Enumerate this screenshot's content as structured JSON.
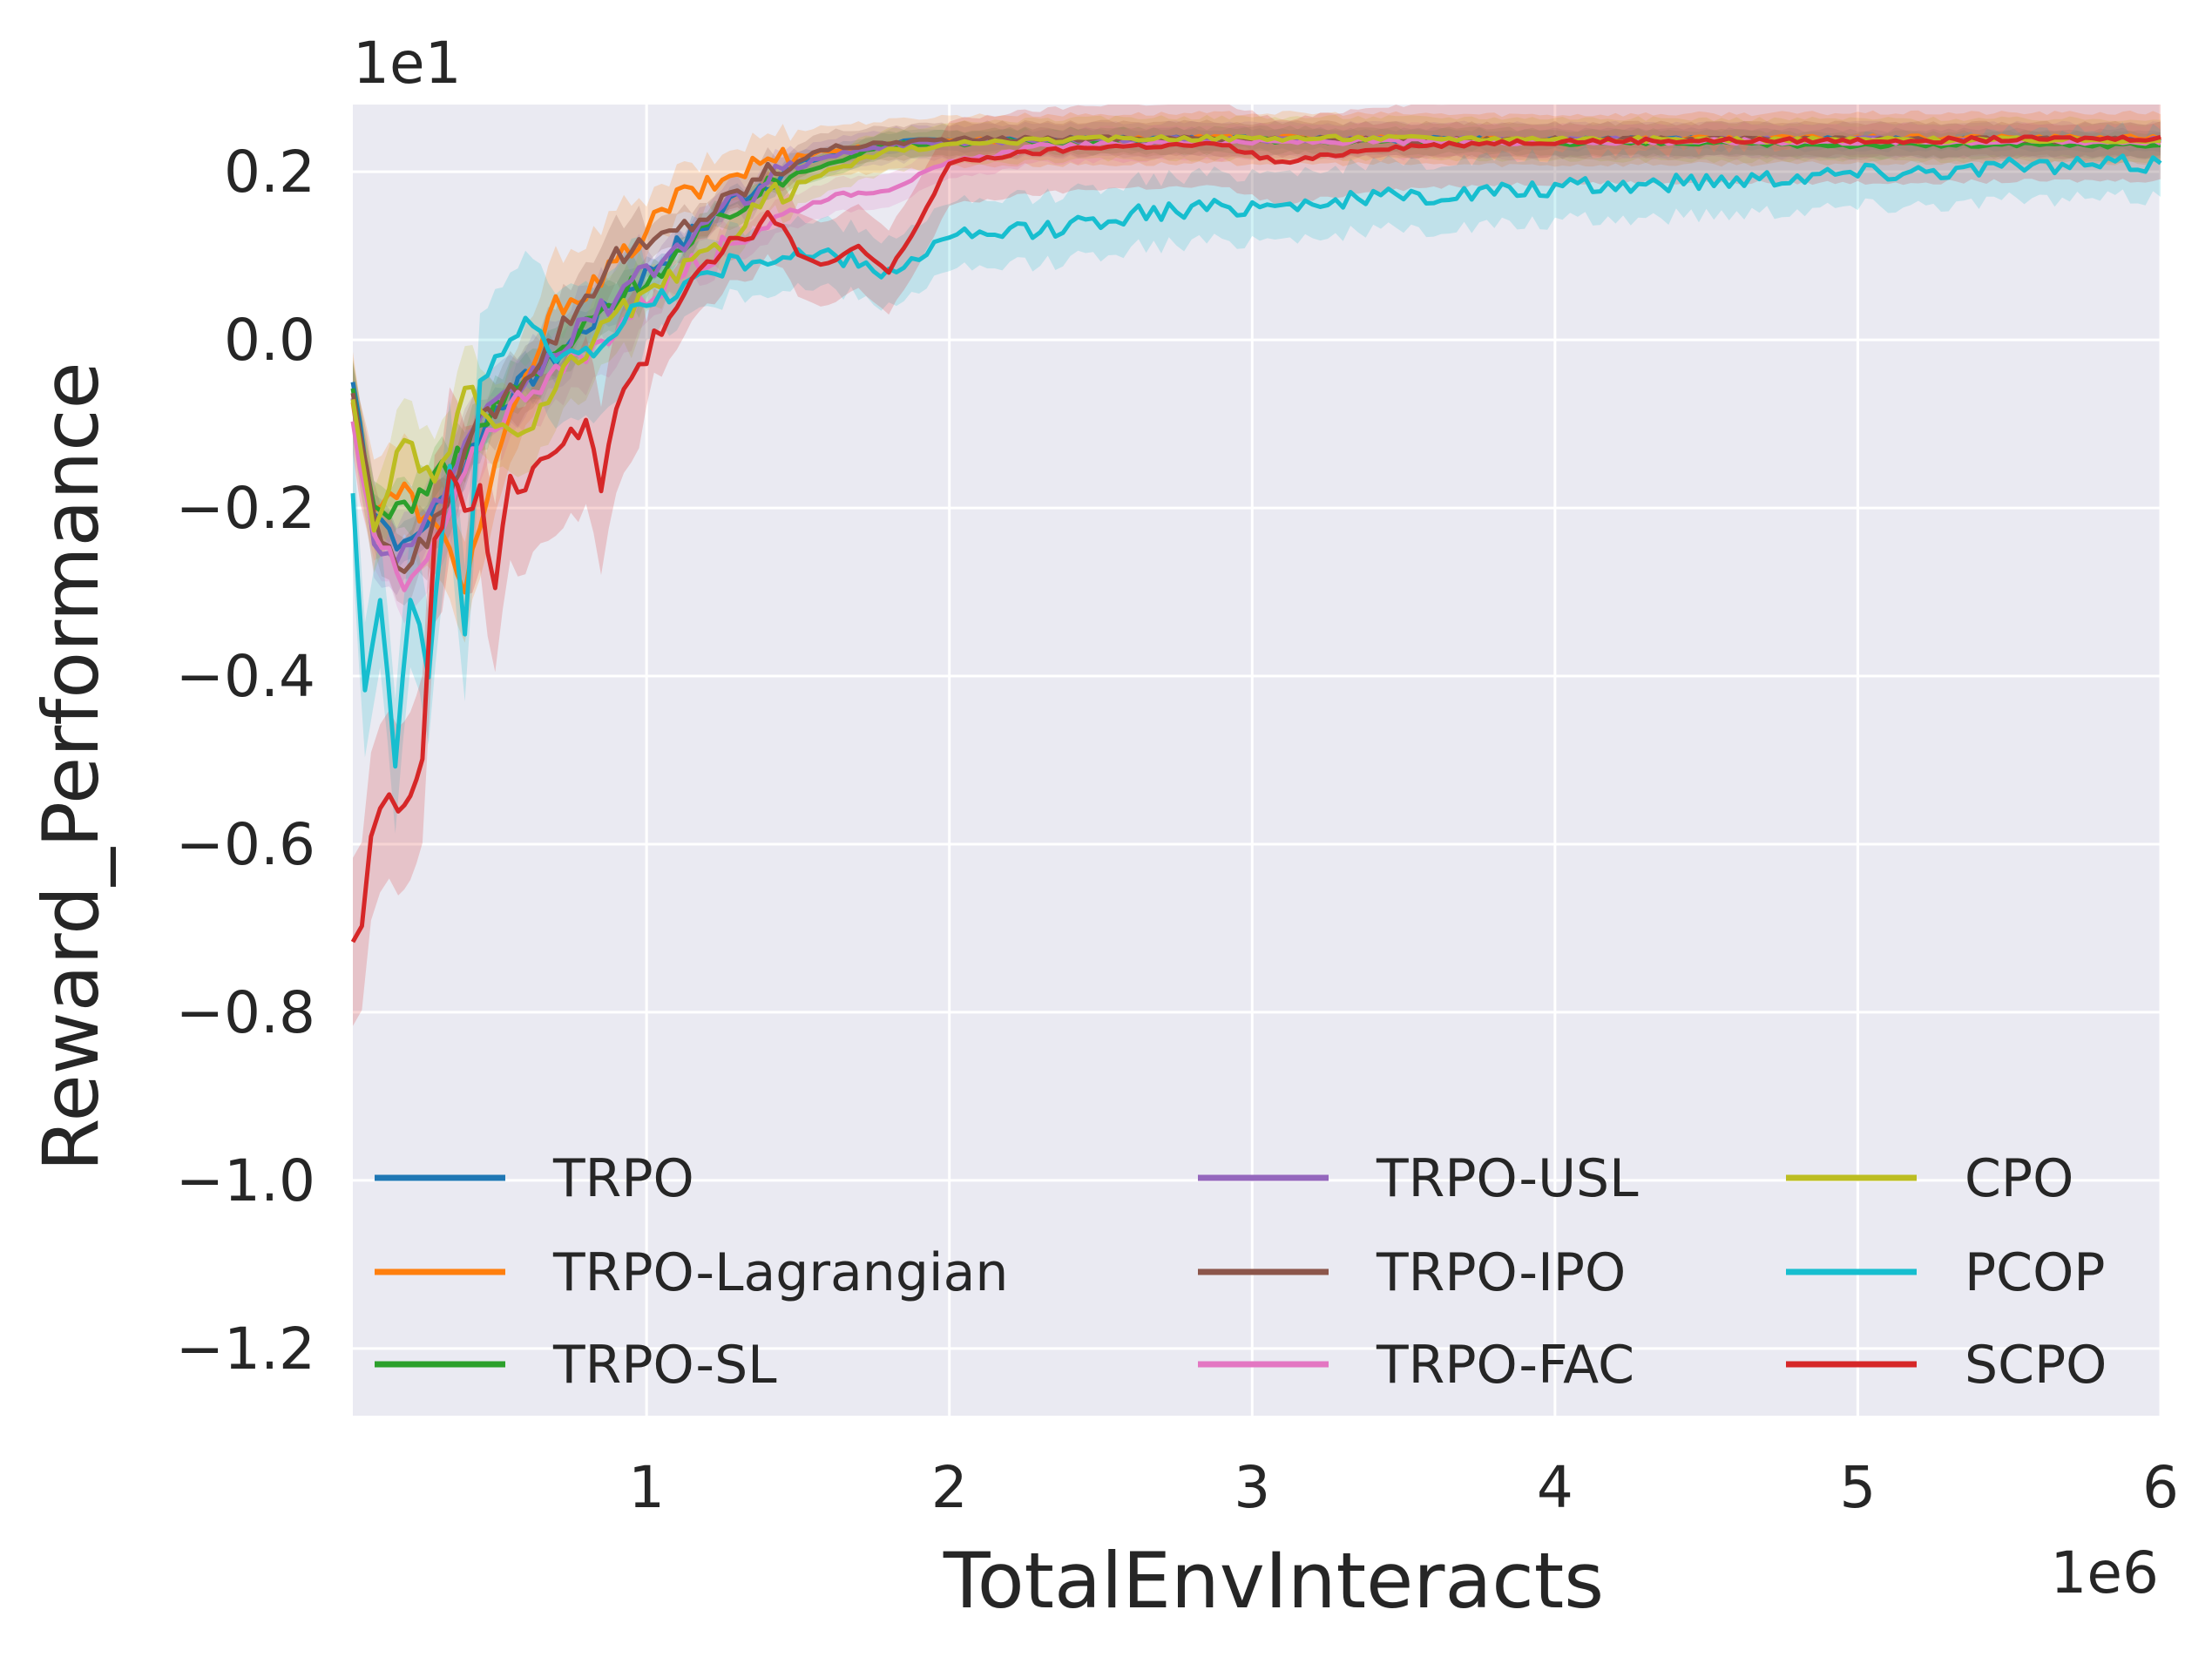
{
  "chart_data": {
    "type": "line",
    "title": "",
    "xlabel": "TotalEnvInteracts",
    "ylabel": "Reward_Performance",
    "x_offset_label": "1e6",
    "y_offset_label": "1e1",
    "xlim": [
      0.03,
      6.0
    ],
    "ylim": [
      -1.28,
      0.28
    ],
    "x_ticks": [
      1,
      2,
      3,
      4,
      5,
      6
    ],
    "x_tick_labels": [
      "1",
      "2",
      "3",
      "4",
      "5",
      "6"
    ],
    "y_ticks": [
      0.2,
      0.0,
      -0.2,
      -0.4,
      -0.6,
      -0.8,
      -1.0,
      -1.2
    ],
    "y_tick_labels": [
      "0.2",
      "0.0",
      "−0.2",
      "−0.4",
      "−0.6",
      "−0.8",
      "−1.0",
      "−1.2"
    ],
    "grid": true,
    "legend_position": "lower-center",
    "series": [
      {
        "name": "TRPO",
        "color": "#1f77b4",
        "points": [
          [
            0.03,
            -0.05
          ],
          [
            0.1,
            -0.2
          ],
          [
            0.2,
            -0.25
          ],
          [
            0.35,
            -0.18
          ],
          [
            0.5,
            -0.08
          ],
          [
            0.7,
            -0.02
          ],
          [
            0.9,
            0.05
          ],
          [
            1.1,
            0.11
          ],
          [
            1.3,
            0.17
          ],
          [
            1.5,
            0.21
          ],
          [
            1.8,
            0.235
          ],
          [
            2.2,
            0.238
          ],
          [
            3.0,
            0.24
          ],
          [
            4.0,
            0.238
          ],
          [
            5.0,
            0.238
          ],
          [
            6.0,
            0.238
          ]
        ],
        "band": 0.012
      },
      {
        "name": "TRPO-Lagrangian",
        "color": "#ff7f0e",
        "points": [
          [
            0.03,
            -0.08
          ],
          [
            0.1,
            -0.2
          ],
          [
            0.2,
            -0.18
          ],
          [
            0.35,
            -0.25
          ],
          [
            0.4,
            -0.29
          ],
          [
            0.5,
            -0.15
          ],
          [
            0.6,
            -0.05
          ],
          [
            0.7,
            0.04
          ],
          [
            0.85,
            0.07
          ],
          [
            1.0,
            0.13
          ],
          [
            1.1,
            0.17
          ],
          [
            1.2,
            0.18
          ],
          [
            1.3,
            0.2
          ],
          [
            1.4,
            0.215
          ],
          [
            1.6,
            0.225
          ],
          [
            2.0,
            0.237
          ],
          [
            3.0,
            0.24
          ],
          [
            4.0,
            0.238
          ],
          [
            5.0,
            0.24
          ],
          [
            6.0,
            0.24
          ]
        ],
        "band": 0.03
      },
      {
        "name": "TRPO-SL",
        "color": "#2ca02c",
        "points": [
          [
            0.03,
            -0.07
          ],
          [
            0.1,
            -0.2
          ],
          [
            0.2,
            -0.2
          ],
          [
            0.35,
            -0.15
          ],
          [
            0.5,
            -0.08
          ],
          [
            0.7,
            -0.02
          ],
          [
            0.9,
            0.05
          ],
          [
            1.1,
            0.1
          ],
          [
            1.3,
            0.16
          ],
          [
            1.5,
            0.2
          ],
          [
            1.8,
            0.232
          ],
          [
            2.2,
            0.236
          ],
          [
            3.0,
            0.238
          ],
          [
            4.0,
            0.235
          ],
          [
            5.0,
            0.232
          ],
          [
            6.0,
            0.232
          ]
        ],
        "band": 0.015
      },
      {
        "name": "TRPO-USL",
        "color": "#9467bd",
        "points": [
          [
            0.03,
            -0.06
          ],
          [
            0.1,
            -0.25
          ],
          [
            0.2,
            -0.25
          ],
          [
            0.3,
            -0.2
          ],
          [
            0.45,
            -0.1
          ],
          [
            0.6,
            -0.05
          ],
          [
            0.8,
            0.02
          ],
          [
            1.0,
            0.08
          ],
          [
            1.2,
            0.14
          ],
          [
            1.4,
            0.19
          ],
          [
            1.6,
            0.22
          ],
          [
            1.9,
            0.235
          ],
          [
            2.5,
            0.238
          ],
          [
            3.5,
            0.238
          ],
          [
            4.5,
            0.238
          ],
          [
            6.0,
            0.238
          ]
        ],
        "band": 0.02
      },
      {
        "name": "TRPO-IPO",
        "color": "#8c564b",
        "points": [
          [
            0.03,
            -0.06
          ],
          [
            0.1,
            -0.22
          ],
          [
            0.2,
            -0.28
          ],
          [
            0.3,
            -0.22
          ],
          [
            0.45,
            -0.1
          ],
          [
            0.6,
            -0.04
          ],
          [
            0.75,
            0.03
          ],
          [
            0.9,
            0.1
          ],
          [
            1.0,
            0.11
          ],
          [
            1.2,
            0.15
          ],
          [
            1.4,
            0.2
          ],
          [
            1.6,
            0.228
          ],
          [
            1.9,
            0.237
          ],
          [
            2.5,
            0.24
          ],
          [
            3.5,
            0.238
          ],
          [
            4.5,
            0.238
          ],
          [
            6.0,
            0.238
          ]
        ],
        "band": 0.02
      },
      {
        "name": "TRPO-FAC",
        "color": "#e377c2",
        "points": [
          [
            0.03,
            -0.1
          ],
          [
            0.1,
            -0.22
          ],
          [
            0.2,
            -0.3
          ],
          [
            0.3,
            -0.25
          ],
          [
            0.45,
            -0.12
          ],
          [
            0.6,
            -0.06
          ],
          [
            0.8,
            -0.02
          ],
          [
            1.0,
            0.05
          ],
          [
            1.2,
            0.1
          ],
          [
            1.4,
            0.14
          ],
          [
            1.6,
            0.17
          ],
          [
            1.8,
            0.18
          ],
          [
            2.0,
            0.21
          ],
          [
            2.3,
            0.23
          ],
          [
            2.8,
            0.235
          ],
          [
            3.5,
            0.236
          ],
          [
            4.5,
            0.236
          ],
          [
            6.0,
            0.236
          ]
        ],
        "band": 0.02
      },
      {
        "name": "CPO",
        "color": "#bcbd22",
        "points": [
          [
            0.03,
            -0.08
          ],
          [
            0.1,
            -0.22
          ],
          [
            0.2,
            -0.12
          ],
          [
            0.3,
            -0.18
          ],
          [
            0.4,
            -0.06
          ],
          [
            0.5,
            -0.1
          ],
          [
            0.6,
            -0.12
          ],
          [
            0.75,
            -0.03
          ],
          [
            0.9,
            0.03
          ],
          [
            1.0,
            0.05
          ],
          [
            1.2,
            0.1
          ],
          [
            1.4,
            0.17
          ],
          [
            1.6,
            0.2
          ],
          [
            1.8,
            0.225
          ],
          [
            2.1,
            0.235
          ],
          [
            2.6,
            0.24
          ],
          [
            3.5,
            0.24
          ],
          [
            4.5,
            0.238
          ],
          [
            6.0,
            0.238
          ]
        ],
        "band": 0.025
      },
      {
        "name": "PCOP",
        "color": "#17becf",
        "points": [
          [
            0.03,
            -0.17
          ],
          [
            0.07,
            -0.42
          ],
          [
            0.12,
            -0.3
          ],
          [
            0.17,
            -0.5
          ],
          [
            0.22,
            -0.3
          ],
          [
            0.28,
            -0.4
          ],
          [
            0.35,
            -0.15
          ],
          [
            0.4,
            -0.35
          ],
          [
            0.45,
            -0.05
          ],
          [
            0.5,
            -0.02
          ],
          [
            0.6,
            0.02
          ],
          [
            0.7,
            -0.02
          ],
          [
            0.8,
            -0.02
          ],
          [
            0.9,
            0.02
          ],
          [
            1.0,
            0.04
          ],
          [
            1.2,
            0.08
          ],
          [
            1.4,
            0.1
          ],
          [
            1.6,
            0.1
          ],
          [
            1.8,
            0.08
          ],
          [
            2.0,
            0.12
          ],
          [
            2.3,
            0.13
          ],
          [
            2.6,
            0.15
          ],
          [
            3.0,
            0.16
          ],
          [
            3.5,
            0.17
          ],
          [
            4.0,
            0.18
          ],
          [
            4.5,
            0.19
          ],
          [
            5.0,
            0.2
          ],
          [
            5.5,
            0.205
          ],
          [
            6.0,
            0.21
          ]
        ],
        "band": 0.04
      },
      {
        "name": "SCPO",
        "color": "#d62728",
        "points": [
          [
            0.03,
            -0.71
          ],
          [
            0.06,
            -0.7
          ],
          [
            0.09,
            -0.6
          ],
          [
            0.12,
            -0.56
          ],
          [
            0.15,
            -0.53
          ],
          [
            0.18,
            -0.57
          ],
          [
            0.22,
            -0.54
          ],
          [
            0.26,
            -0.5
          ],
          [
            0.3,
            -0.25
          ],
          [
            0.35,
            -0.17
          ],
          [
            0.4,
            -0.2
          ],
          [
            0.45,
            -0.18
          ],
          [
            0.5,
            -0.3
          ],
          [
            0.55,
            -0.16
          ],
          [
            0.6,
            -0.18
          ],
          [
            0.7,
            -0.12
          ],
          [
            0.8,
            -0.1
          ],
          [
            0.85,
            -0.18
          ],
          [
            0.9,
            -0.08
          ],
          [
            1.0,
            -0.02
          ],
          [
            1.1,
            0.05
          ],
          [
            1.2,
            0.1
          ],
          [
            1.3,
            0.12
          ],
          [
            1.4,
            0.15
          ],
          [
            1.5,
            0.1
          ],
          [
            1.6,
            0.09
          ],
          [
            1.7,
            0.11
          ],
          [
            1.8,
            0.08
          ],
          [
            1.9,
            0.14
          ],
          [
            2.0,
            0.21
          ],
          [
            2.2,
            0.22
          ],
          [
            2.5,
            0.23
          ],
          [
            2.9,
            0.232
          ],
          [
            3.1,
            0.21
          ],
          [
            3.4,
            0.228
          ],
          [
            3.8,
            0.235
          ],
          [
            4.2,
            0.237
          ],
          [
            5.0,
            0.237
          ],
          [
            6.0,
            0.24
          ]
        ],
        "band": 0.05
      }
    ]
  }
}
